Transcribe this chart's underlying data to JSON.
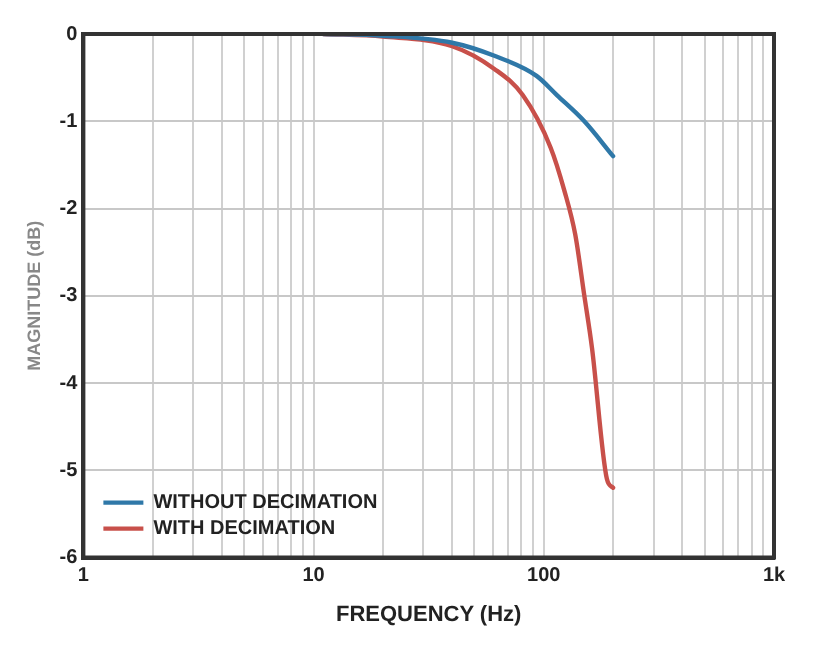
{
  "chart_data": {
    "type": "line",
    "xlabel": "FREQUENCY (Hz)",
    "ylabel": "MAGNITUDE (dB)",
    "series": [
      {
        "name": "WITHOUT DECIMATION",
        "color": "#2f78a8",
        "x": [
          11,
          20,
          40,
          61,
          93,
          114,
          150,
          200
        ],
        "values": [
          0,
          -0.02,
          -0.1,
          -0.25,
          -0.48,
          -0.7,
          -1.0,
          -1.4
        ]
      },
      {
        "name": "WITH DECIMATION",
        "color": "#c8504a",
        "x": [
          11,
          20,
          40,
          61,
          81,
          107,
          123,
          137,
          150,
          162,
          188,
          200
        ],
        "values": [
          0,
          -0.03,
          -0.14,
          -0.4,
          -0.7,
          -1.3,
          -1.8,
          -2.3,
          -3.0,
          -3.6,
          -5.1,
          -5.2
        ]
      }
    ],
    "log": "x",
    "xlim": [
      1,
      1000
    ],
    "xticks": [
      1,
      {
        "value": 2,
        "label": null
      },
      {
        "value": 3,
        "label": null
      },
      {
        "value": 4,
        "label": null
      },
      {
        "value": 5,
        "label": null
      },
      {
        "value": 6,
        "label": null
      },
      {
        "value": 7,
        "label": null
      },
      {
        "value": 8,
        "label": null
      },
      {
        "value": 9,
        "label": null
      },
      10,
      {
        "value": 20,
        "label": null
      },
      {
        "value": 30,
        "label": null
      },
      {
        "value": 40,
        "label": null
      },
      {
        "value": 50,
        "label": null
      },
      {
        "value": 60,
        "label": null
      },
      {
        "value": 70,
        "label": null
      },
      {
        "value": 80,
        "label": null
      },
      {
        "value": 90,
        "label": null
      },
      100,
      {
        "value": 200,
        "label": null
      },
      {
        "value": 300,
        "label": null
      },
      {
        "value": 400,
        "label": null
      },
      {
        "value": 500,
        "label": null
      },
      {
        "value": 600,
        "label": null
      },
      {
        "value": 700,
        "label": null
      },
      {
        "value": 800,
        "label": null
      },
      {
        "value": 900,
        "label": null
      },
      {
        "value": 1000,
        "label": "1k"
      }
    ],
    "ylim": [
      -6,
      0
    ],
    "yticks": [
      -6,
      -5,
      -4,
      -3,
      -2,
      -1,
      0
    ],
    "grid": true,
    "legend": "bottom left",
    "marker": "none",
    "line_style": "solid"
  }
}
